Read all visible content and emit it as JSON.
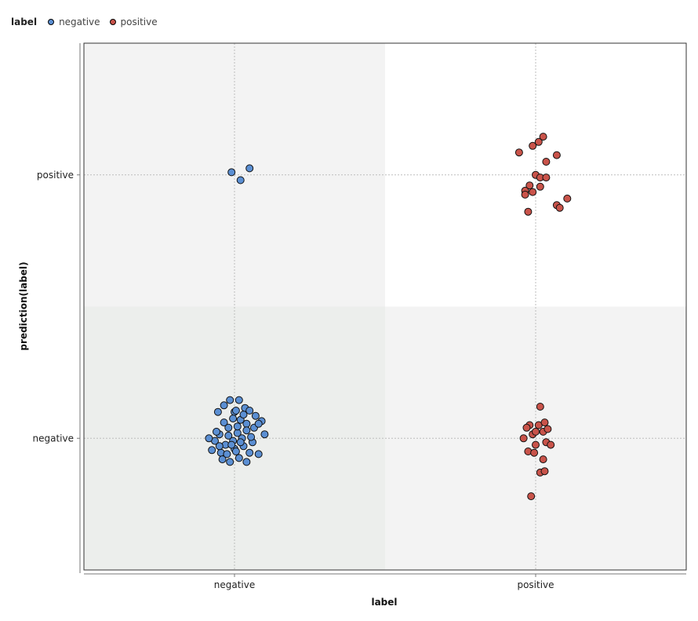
{
  "chart_data": {
    "type": "scatter",
    "legend": {
      "title": "label",
      "position": "top-left",
      "entries": [
        {
          "name": "negative",
          "color": "#5b8fd3"
        },
        {
          "name": "positive",
          "color": "#c9534a"
        }
      ]
    },
    "xlabel": "label",
    "ylabel": "prediction(label)",
    "x_categories": [
      "negative",
      "positive"
    ],
    "y_categories": [
      "negative",
      "positive"
    ],
    "grid": true,
    "jitter": true,
    "series": [
      {
        "name": "negative",
        "color": "#5b8fd3",
        "points": [
          {
            "x": "negative",
            "y": "positive",
            "dx": -0.02,
            "dy": 0.02
          },
          {
            "x": "negative",
            "y": "positive",
            "dx": 0.04,
            "dy": -0.04
          },
          {
            "x": "negative",
            "y": "positive",
            "dx": 0.1,
            "dy": 0.05
          },
          {
            "x": "negative",
            "y": "negative",
            "dx": -0.11,
            "dy": 0.2
          },
          {
            "x": "negative",
            "y": "negative",
            "dx": -0.03,
            "dy": 0.29
          },
          {
            "x": "negative",
            "y": "negative",
            "dx": 0.03,
            "dy": 0.29
          },
          {
            "x": "negative",
            "y": "negative",
            "dx": 0.07,
            "dy": 0.23
          },
          {
            "x": "negative",
            "y": "negative",
            "dx": -0.07,
            "dy": 0.25
          },
          {
            "x": "negative",
            "y": "negative",
            "dx": 0.0,
            "dy": 0.2
          },
          {
            "x": "negative",
            "y": "negative",
            "dx": 0.1,
            "dy": 0.21
          },
          {
            "x": "negative",
            "y": "negative",
            "dx": 0.04,
            "dy": 0.14
          },
          {
            "x": "negative",
            "y": "negative",
            "dx": -0.04,
            "dy": 0.08
          },
          {
            "x": "negative",
            "y": "negative",
            "dx": 0.18,
            "dy": 0.13
          },
          {
            "x": "negative",
            "y": "negative",
            "dx": 0.13,
            "dy": 0.08
          },
          {
            "x": "negative",
            "y": "negative",
            "dx": 0.08,
            "dy": 0.11
          },
          {
            "x": "negative",
            "y": "negative",
            "dx": 0.02,
            "dy": 0.04
          },
          {
            "x": "negative",
            "y": "negative",
            "dx": -0.1,
            "dy": 0.03
          },
          {
            "x": "negative",
            "y": "negative",
            "dx": -0.13,
            "dy": -0.02
          },
          {
            "x": "negative",
            "y": "negative",
            "dx": -0.17,
            "dy": 0.0
          },
          {
            "x": "negative",
            "y": "negative",
            "dx": -0.06,
            "dy": -0.05
          },
          {
            "x": "negative",
            "y": "negative",
            "dx": 0.0,
            "dy": -0.08
          },
          {
            "x": "negative",
            "y": "negative",
            "dx": 0.06,
            "dy": -0.06
          },
          {
            "x": "negative",
            "y": "negative",
            "dx": 0.1,
            "dy": -0.11
          },
          {
            "x": "negative",
            "y": "negative",
            "dx": -0.09,
            "dy": -0.11
          },
          {
            "x": "negative",
            "y": "negative",
            "dx": 0.12,
            "dy": -0.03
          },
          {
            "x": "negative",
            "y": "negative",
            "dx": -0.15,
            "dy": -0.09
          },
          {
            "x": "negative",
            "y": "negative",
            "dx": 0.05,
            "dy": 0.0
          },
          {
            "x": "negative",
            "y": "negative",
            "dx": -0.01,
            "dy": -0.02
          },
          {
            "x": "negative",
            "y": "negative",
            "dx": 0.03,
            "dy": -0.15
          },
          {
            "x": "negative",
            "y": "negative",
            "dx": 0.16,
            "dy": 0.11
          },
          {
            "x": "negative",
            "y": "negative",
            "dx": 0.2,
            "dy": 0.03
          },
          {
            "x": "negative",
            "y": "negative",
            "dx": 0.16,
            "dy": -0.12
          },
          {
            "x": "negative",
            "y": "negative",
            "dx": 0.08,
            "dy": -0.18
          },
          {
            "x": "negative",
            "y": "negative",
            "dx": -0.03,
            "dy": -0.18
          },
          {
            "x": "negative",
            "y": "negative",
            "dx": -0.08,
            "dy": -0.16
          },
          {
            "x": "negative",
            "y": "negative",
            "dx": -0.01,
            "dy": 0.15
          },
          {
            "x": "negative",
            "y": "negative",
            "dx": 0.02,
            "dy": 0.09
          },
          {
            "x": "negative",
            "y": "negative",
            "dx": -0.04,
            "dy": 0.02
          },
          {
            "x": "negative",
            "y": "negative",
            "dx": 0.08,
            "dy": 0.06
          },
          {
            "x": "negative",
            "y": "negative",
            "dx": 0.01,
            "dy": -0.1
          },
          {
            "x": "negative",
            "y": "negative",
            "dx": -0.05,
            "dy": -0.12
          },
          {
            "x": "negative",
            "y": "negative",
            "dx": 0.11,
            "dy": 0.01
          },
          {
            "x": "negative",
            "y": "negative",
            "dx": -0.12,
            "dy": 0.05
          },
          {
            "x": "negative",
            "y": "negative",
            "dx": 0.06,
            "dy": 0.18
          },
          {
            "x": "negative",
            "y": "negative",
            "dx": -0.07,
            "dy": 0.12
          },
          {
            "x": "negative",
            "y": "negative",
            "dx": 0.14,
            "dy": 0.17
          },
          {
            "x": "negative",
            "y": "negative",
            "dx": -0.02,
            "dy": -0.05
          },
          {
            "x": "negative",
            "y": "negative",
            "dx": 0.04,
            "dy": -0.03
          },
          {
            "x": "negative",
            "y": "negative",
            "dx": -0.1,
            "dy": -0.06
          },
          {
            "x": "negative",
            "y": "negative",
            "dx": 0.01,
            "dy": 0.21
          }
        ]
      },
      {
        "name": "positive",
        "color": "#c9534a",
        "points": [
          {
            "x": "positive",
            "y": "positive",
            "dx": -0.11,
            "dy": 0.17
          },
          {
            "x": "positive",
            "y": "positive",
            "dx": -0.02,
            "dy": 0.22
          },
          {
            "x": "positive",
            "y": "positive",
            "dx": 0.02,
            "dy": 0.25
          },
          {
            "x": "positive",
            "y": "positive",
            "dx": 0.05,
            "dy": 0.29
          },
          {
            "x": "positive",
            "y": "positive",
            "dx": 0.07,
            "dy": 0.1
          },
          {
            "x": "positive",
            "y": "positive",
            "dx": 0.14,
            "dy": 0.15
          },
          {
            "x": "positive",
            "y": "positive",
            "dx": 0.0,
            "dy": 0.0
          },
          {
            "x": "positive",
            "y": "positive",
            "dx": 0.03,
            "dy": -0.02
          },
          {
            "x": "positive",
            "y": "positive",
            "dx": 0.07,
            "dy": -0.02
          },
          {
            "x": "positive",
            "y": "positive",
            "dx": -0.04,
            "dy": -0.08
          },
          {
            "x": "positive",
            "y": "positive",
            "dx": -0.07,
            "dy": -0.12
          },
          {
            "x": "positive",
            "y": "positive",
            "dx": -0.07,
            "dy": -0.15
          },
          {
            "x": "positive",
            "y": "positive",
            "dx": -0.02,
            "dy": -0.13
          },
          {
            "x": "positive",
            "y": "positive",
            "dx": 0.03,
            "dy": -0.09
          },
          {
            "x": "positive",
            "y": "positive",
            "dx": 0.14,
            "dy": -0.23
          },
          {
            "x": "positive",
            "y": "positive",
            "dx": 0.16,
            "dy": -0.25
          },
          {
            "x": "positive",
            "y": "positive",
            "dx": 0.21,
            "dy": -0.18
          },
          {
            "x": "positive",
            "y": "positive",
            "dx": -0.05,
            "dy": -0.28
          },
          {
            "x": "positive",
            "y": "negative",
            "dx": 0.03,
            "dy": 0.24
          },
          {
            "x": "positive",
            "y": "negative",
            "dx": -0.04,
            "dy": 0.1
          },
          {
            "x": "positive",
            "y": "negative",
            "dx": 0.02,
            "dy": 0.1
          },
          {
            "x": "positive",
            "y": "negative",
            "dx": 0.05,
            "dy": 0.05
          },
          {
            "x": "positive",
            "y": "negative",
            "dx": -0.02,
            "dy": 0.03
          },
          {
            "x": "positive",
            "y": "negative",
            "dx": 0.07,
            "dy": -0.03
          },
          {
            "x": "positive",
            "y": "negative",
            "dx": -0.08,
            "dy": 0.0
          },
          {
            "x": "positive",
            "y": "negative",
            "dx": -0.05,
            "dy": -0.1
          },
          {
            "x": "positive",
            "y": "negative",
            "dx": 0.0,
            "dy": -0.05
          },
          {
            "x": "positive",
            "y": "negative",
            "dx": 0.05,
            "dy": -0.16
          },
          {
            "x": "positive",
            "y": "negative",
            "dx": 0.03,
            "dy": -0.26
          },
          {
            "x": "positive",
            "y": "negative",
            "dx": 0.0,
            "dy": 0.05
          },
          {
            "x": "positive",
            "y": "negative",
            "dx": 0.1,
            "dy": -0.05
          },
          {
            "x": "positive",
            "y": "negative",
            "dx": -0.01,
            "dy": -0.11
          },
          {
            "x": "positive",
            "y": "negative",
            "dx": 0.08,
            "dy": 0.07
          },
          {
            "x": "positive",
            "y": "negative",
            "dx": -0.06,
            "dy": 0.08
          },
          {
            "x": "positive",
            "y": "negative",
            "dx": 0.06,
            "dy": 0.12
          },
          {
            "x": "positive",
            "y": "negative",
            "dx": 0.06,
            "dy": -0.25
          },
          {
            "x": "positive",
            "y": "negative",
            "dx": -0.03,
            "dy": -0.44
          }
        ]
      }
    ]
  }
}
